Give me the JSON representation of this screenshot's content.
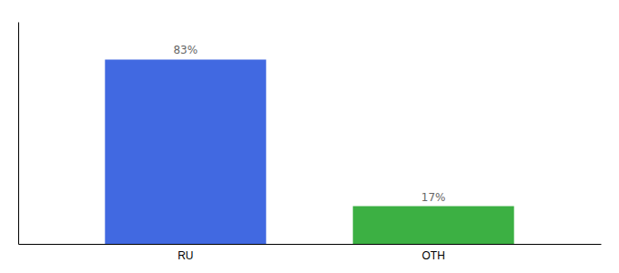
{
  "chart_data": {
    "type": "bar",
    "categories": [
      "RU",
      "OTH"
    ],
    "values": [
      83,
      17
    ],
    "value_labels": [
      "83%",
      "17%"
    ],
    "colors": [
      "#4169e1",
      "#3cb043"
    ],
    "ylim": [
      0,
      100
    ],
    "data_labels": true,
    "tick_labels": "x"
  }
}
